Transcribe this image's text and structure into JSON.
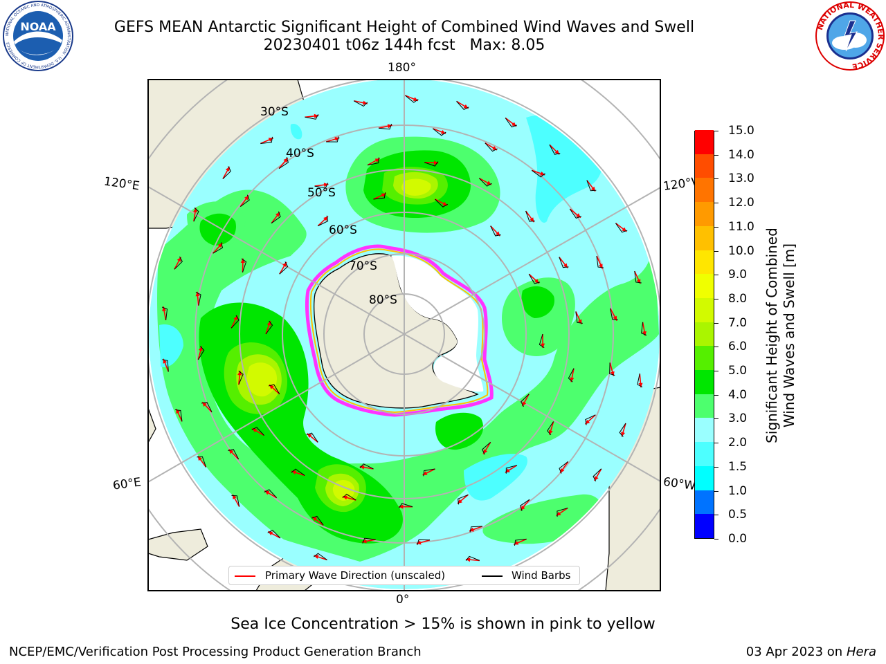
{
  "header": {
    "title_line1": "GEFS MEAN Antarctic Significant Height of Combined Wind Waves and Swell",
    "title_line2": "20230401 t06z 144h fcst   Max: 8.05"
  },
  "logos": {
    "noaa_text": "NOAA",
    "noaa_ring_text": "NATIONAL OCEANIC AND ATMOSPHERIC ADMINISTRATION · U.S. DEPARTMENT OF COMMERCE",
    "nws_ring_text": "NATIONAL WEATHER SERVICE"
  },
  "map": {
    "projection": "south-polar-stereographic",
    "longitude_labels": {
      "top": "180°",
      "bottom": "0°",
      "upper_left": "120°E",
      "lower_left": "60°E",
      "upper_right": "120°W",
      "lower_right": "60°W"
    },
    "latitude_labels": [
      "30°S",
      "40°S",
      "50°S",
      "60°S",
      "70°S",
      "80°S"
    ],
    "colors": {
      "land": "#eeecdc",
      "ocean_base": "#9affff",
      "wave_arrow": "#ff0000",
      "wind_barb": "#000000",
      "ice_edge": "#ff33ff",
      "gridline": "#b3b3b3"
    }
  },
  "legend": {
    "primary_wave_label": "Primary Wave Direction (unscaled)",
    "wind_barbs_label": "Wind Barbs"
  },
  "colorbar": {
    "label_line1": "Significant Height of Combined",
    "label_line2": "Wind Waves and Swell [m]",
    "unit": "m",
    "min": 0.0,
    "max": 15.0,
    "tick_labels": [
      "0.0",
      "0.5",
      "1.0",
      "1.5",
      "2.0",
      "3.0",
      "4.0",
      "5.0",
      "6.0",
      "7.0",
      "8.0",
      "9.0",
      "10.0",
      "11.0",
      "12.0",
      "13.0",
      "14.0",
      "15.0"
    ],
    "colors": [
      "#0000ff",
      "#0073ff",
      "#00ffff",
      "#4dffff",
      "#9affff",
      "#4dff6e",
      "#00e600",
      "#55ef00",
      "#aaf500",
      "#d2fa00",
      "#f0ff00",
      "#ffe600",
      "#ffc000",
      "#ff9a00",
      "#ff7400",
      "#ff4d00",
      "#ff0000"
    ]
  },
  "footer": {
    "ice_note": "Sea Ice Concentration > 15% is shown in pink to yellow",
    "credit": "NCEP/EMC/Verification Post Processing Product Generation Branch",
    "date_prefix": "03 Apr 2023 on ",
    "machine": "Hera"
  }
}
